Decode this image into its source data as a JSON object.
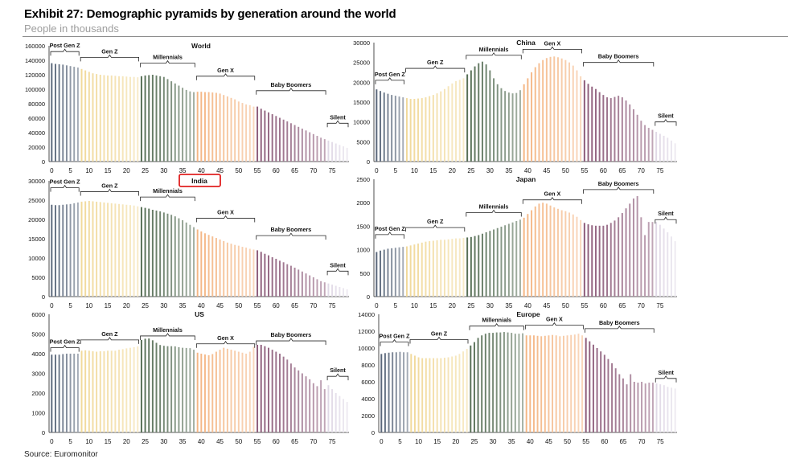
{
  "header": {
    "title": "Exhibit 27: Demographic pyramids by generation around the world",
    "subtitle": "People in thousands",
    "source": "Source: Euromonitor"
  },
  "colors": {
    "Post Gen Z": "#5a677a",
    "Gen Z": "#f1d99a",
    "Millennials": "#566e55",
    "Gen X": "#f4b684",
    "Baby Boomers": "#8d5c7a",
    "Silent": "#e0d9e6",
    "highlight": "#e02020"
  },
  "chart_data": [
    {
      "type": "bar",
      "title": "World",
      "highlighted": false,
      "x_ticks": [
        0,
        5,
        10,
        15,
        20,
        25,
        30,
        35,
        40,
        45,
        50,
        55,
        60,
        65,
        70,
        75
      ],
      "ylim": [
        0,
        160000
      ],
      "y_ticks": [
        0,
        20000,
        40000,
        60000,
        80000,
        100000,
        120000,
        140000,
        160000
      ],
      "generations": [
        {
          "name": "Post Gen Z",
          "start": 0,
          "end": 8,
          "label_y": 152000
        },
        {
          "name": "Gen Z",
          "start": 8,
          "end": 24,
          "label_y": 144000
        },
        {
          "name": "Millennials",
          "start": 24,
          "end": 39,
          "label_y": 136000
        },
        {
          "name": "Gen X",
          "start": 39,
          "end": 55,
          "label_y": 118000
        },
        {
          "name": "Baby Boomers",
          "start": 55,
          "end": 74,
          "label_y": 98000
        },
        {
          "name": "Silent",
          "start": 74,
          "end": 80,
          "label_y": 53000
        }
      ],
      "values": [
        136000,
        135000,
        134500,
        134000,
        133000,
        132000,
        131000,
        130000,
        128000,
        126000,
        124000,
        122000,
        121000,
        120000,
        119500,
        119000,
        119000,
        118500,
        118000,
        118000,
        117500,
        117000,
        117000,
        116500,
        118000,
        119000,
        119500,
        120000,
        119000,
        118000,
        117000,
        114000,
        111000,
        108000,
        105000,
        102000,
        99000,
        97000,
        96000,
        96500,
        96500,
        96000,
        96000,
        95500,
        95000,
        94000,
        92000,
        90000,
        88000,
        86000,
        83000,
        81000,
        79000,
        78000,
        76000,
        76000,
        73000,
        70500,
        68000,
        65500,
        63000,
        60500,
        58000,
        55500,
        53000,
        50500,
        48000,
        45500,
        43000,
        40500,
        38000,
        35500,
        33000,
        31000,
        29000,
        27000,
        25000,
        23000,
        21000,
        19000
      ]
    },
    {
      "type": "bar",
      "title": "China",
      "highlighted": false,
      "x_ticks": [
        0,
        5,
        10,
        15,
        20,
        25,
        30,
        35,
        40,
        45,
        50,
        55,
        60,
        65,
        70,
        75
      ],
      "ylim": [
        0,
        30000
      ],
      "y_ticks": [
        0,
        5000,
        10000,
        15000,
        20000,
        25000,
        30000
      ],
      "generations": [
        {
          "name": "Post Gen Z",
          "start": 0,
          "end": 8,
          "label_y": 20500
        },
        {
          "name": "Gen Z",
          "start": 8,
          "end": 24,
          "label_y": 23500
        },
        {
          "name": "Millennials",
          "start": 24,
          "end": 39,
          "label_y": 26800
        },
        {
          "name": "Gen X",
          "start": 39,
          "end": 55,
          "label_y": 28300
        },
        {
          "name": "Baby Boomers",
          "start": 55,
          "end": 74,
          "label_y": 25000
        },
        {
          "name": "Silent",
          "start": 74,
          "end": 80,
          "label_y": 10000
        }
      ],
      "values": [
        18200,
        17800,
        17400,
        17100,
        16800,
        16600,
        16400,
        16200,
        16000,
        15800,
        15800,
        15900,
        16000,
        16200,
        16500,
        16800,
        17200,
        17700,
        18300,
        19000,
        19700,
        20300,
        20600,
        21000,
        22000,
        23000,
        24000,
        24800,
        25200,
        24500,
        23000,
        21000,
        19500,
        18500,
        17800,
        17400,
        17200,
        17300,
        18000,
        19500,
        21000,
        22500,
        23800,
        24800,
        25600,
        26100,
        26400,
        26500,
        26300,
        26000,
        25600,
        25000,
        24200,
        23000,
        21500,
        20500,
        19600,
        18900,
        18300,
        17500,
        16800,
        16200,
        16000,
        16300,
        16600,
        16200,
        15400,
        14400,
        13200,
        11800,
        10300,
        9200,
        8500,
        8000,
        7500,
        7000,
        6500,
        6000,
        5300,
        4600
      ]
    },
    {
      "type": "bar",
      "title": "India",
      "highlighted": true,
      "x_ticks": [
        0,
        5,
        10,
        15,
        20,
        25,
        30,
        35,
        40,
        45,
        50,
        55,
        60,
        65,
        70,
        75
      ],
      "ylim": [
        0,
        30000
      ],
      "y_ticks": [
        0,
        5000,
        10000,
        15000,
        20000,
        25000,
        30000
      ],
      "generations": [
        {
          "name": "Post Gen Z",
          "start": 0,
          "end": 8,
          "label_y": 28200
        },
        {
          "name": "Gen Z",
          "start": 8,
          "end": 24,
          "label_y": 27200
        },
        {
          "name": "Millennials",
          "start": 24,
          "end": 39,
          "label_y": 25800
        },
        {
          "name": "Gen X",
          "start": 39,
          "end": 55,
          "label_y": 20300
        },
        {
          "name": "Baby Boomers",
          "start": 55,
          "end": 74,
          "label_y": 15800
        },
        {
          "name": "Silent",
          "start": 74,
          "end": 80,
          "label_y": 6600
        }
      ],
      "values": [
        23800,
        23700,
        23700,
        23800,
        23900,
        24000,
        24200,
        24400,
        24600,
        24700,
        24800,
        24700,
        24600,
        24500,
        24400,
        24300,
        24200,
        24100,
        24000,
        23900,
        23800,
        23700,
        23600,
        23400,
        23200,
        23000,
        22800,
        22500,
        22300,
        22100,
        21800,
        21500,
        21200,
        20800,
        20300,
        19800,
        19200,
        18600,
        18000,
        17400,
        16900,
        16400,
        16000,
        15600,
        15200,
        14800,
        14400,
        14000,
        13700,
        13400,
        13200,
        12900,
        12700,
        12400,
        12200,
        12000,
        11600,
        11100,
        10700,
        10200,
        9800,
        9300,
        8900,
        8400,
        8000,
        7500,
        7000,
        6500,
        6000,
        5500,
        5000,
        4500,
        4000,
        3700,
        3400,
        3100,
        2800,
        2500,
        2200,
        1900
      ]
    },
    {
      "type": "bar",
      "title": "Japan",
      "highlighted": false,
      "x_ticks": [
        0,
        5,
        10,
        15,
        20,
        25,
        30,
        35,
        40,
        45,
        50,
        55,
        60,
        65,
        70,
        75
      ],
      "ylim": [
        0,
        2500
      ],
      "y_ticks": [
        0,
        500,
        1000,
        1500,
        2000,
        2500
      ],
      "generations": [
        {
          "name": "Post Gen Z",
          "start": 0,
          "end": 8,
          "label_y": 1320
        },
        {
          "name": "Gen Z",
          "start": 8,
          "end": 24,
          "label_y": 1470
        },
        {
          "name": "Millennials",
          "start": 24,
          "end": 39,
          "label_y": 1790
        },
        {
          "name": "Gen X",
          "start": 39,
          "end": 55,
          "label_y": 2060
        },
        {
          "name": "Baby Boomers",
          "start": 55,
          "end": 74,
          "label_y": 2280
        },
        {
          "name": "Silent",
          "start": 74,
          "end": 80,
          "label_y": 1640
        }
      ],
      "values": [
        950,
        980,
        1000,
        1020,
        1030,
        1040,
        1050,
        1060,
        1070,
        1090,
        1110,
        1130,
        1150,
        1170,
        1180,
        1190,
        1200,
        1210,
        1210,
        1220,
        1230,
        1240,
        1240,
        1250,
        1260,
        1270,
        1290,
        1310,
        1340,
        1370,
        1400,
        1430,
        1460,
        1490,
        1520,
        1550,
        1580,
        1610,
        1640,
        1680,
        1760,
        1840,
        1920,
        1980,
        2000,
        1980,
        1940,
        1900,
        1870,
        1840,
        1820,
        1790,
        1750,
        1700,
        1630,
        1570,
        1540,
        1520,
        1510,
        1510,
        1510,
        1530,
        1570,
        1620,
        1690,
        1780,
        1880,
        1980,
        2090,
        2140,
        1690,
        1310,
        1590,
        1590,
        1590,
        1530,
        1450,
        1370,
        1280,
        1180
      ]
    },
    {
      "type": "bar",
      "title": "US",
      "highlighted": false,
      "x_ticks": [
        0,
        5,
        10,
        15,
        20,
        25,
        30,
        35,
        40,
        45,
        50,
        55,
        60,
        65,
        70,
        75
      ],
      "ylim": [
        0,
        6000
      ],
      "y_ticks": [
        0,
        1000,
        2000,
        3000,
        4000,
        5000,
        6000
      ],
      "generations": [
        {
          "name": "Post Gen Z",
          "start": 0,
          "end": 8,
          "label_y": 4300
        },
        {
          "name": "Gen Z",
          "start": 8,
          "end": 24,
          "label_y": 4700
        },
        {
          "name": "Millennials",
          "start": 24,
          "end": 39,
          "label_y": 4900
        },
        {
          "name": "Gen X",
          "start": 39,
          "end": 55,
          "label_y": 4500
        },
        {
          "name": "Baby Boomers",
          "start": 55,
          "end": 74,
          "label_y": 4650
        },
        {
          "name": "Silent",
          "start": 74,
          "end": 80,
          "label_y": 2850
        }
      ],
      "values": [
        3950,
        3950,
        3950,
        3980,
        4000,
        4000,
        4000,
        4000,
        4150,
        4170,
        4150,
        4120,
        4100,
        4120,
        4120,
        4150,
        4150,
        4150,
        4200,
        4230,
        4270,
        4300,
        4330,
        4370,
        4700,
        4760,
        4770,
        4680,
        4550,
        4440,
        4400,
        4380,
        4380,
        4370,
        4330,
        4300,
        4290,
        4280,
        4200,
        4050,
        4000,
        3960,
        3920,
        3980,
        4100,
        4200,
        4300,
        4250,
        4200,
        4150,
        4100,
        4050,
        4000,
        4100,
        4350,
        4450,
        4450,
        4380,
        4300,
        4200,
        4100,
        4000,
        3850,
        3700,
        3500,
        3300,
        3150,
        3000,
        2850,
        2700,
        2500,
        2350,
        2650,
        2200,
        2400,
        2200,
        2000,
        1850,
        1700,
        1550
      ]
    },
    {
      "type": "bar",
      "title": "Europe",
      "highlighted": false,
      "x_ticks": [
        0,
        5,
        10,
        15,
        20,
        25,
        30,
        35,
        40,
        45,
        50,
        55,
        60,
        65,
        70,
        75
      ],
      "ylim": [
        0,
        14000
      ],
      "y_ticks": [
        0,
        2000,
        4000,
        6000,
        8000,
        10000,
        12000,
        14000
      ],
      "generations": [
        {
          "name": "Post Gen Z",
          "start": 0,
          "end": 8,
          "label_y": 10700
        },
        {
          "name": "Gen Z",
          "start": 8,
          "end": 24,
          "label_y": 11000
        },
        {
          "name": "Millennials",
          "start": 24,
          "end": 39,
          "label_y": 12600
        },
        {
          "name": "Gen X",
          "start": 39,
          "end": 55,
          "label_y": 12700
        },
        {
          "name": "Baby Boomers",
          "start": 55,
          "end": 74,
          "label_y": 12300
        },
        {
          "name": "Silent",
          "start": 74,
          "end": 80,
          "label_y": 6400
        }
      ],
      "values": [
        9300,
        9400,
        9450,
        9500,
        9500,
        9550,
        9500,
        9500,
        9300,
        9100,
        8900,
        8800,
        8800,
        8800,
        8800,
        8800,
        8800,
        8850,
        8900,
        9000,
        9100,
        9300,
        9600,
        9900,
        10300,
        10700,
        11200,
        11500,
        11700,
        11800,
        11800,
        11850,
        11850,
        11900,
        11850,
        11800,
        11700,
        11700,
        11750,
        11500,
        11500,
        11500,
        11450,
        11400,
        11450,
        11500,
        11550,
        11500,
        11400,
        11450,
        11500,
        11550,
        11600,
        11700,
        11500,
        11200,
        10800,
        10400,
        10000,
        9600,
        9200,
        8700,
        8200,
        7600,
        6900,
        6400,
        5700,
        6900,
        6000,
        5900,
        6000,
        5800,
        5900,
        5900,
        5800,
        5700,
        5600,
        5400,
        5300,
        5200
      ]
    }
  ]
}
